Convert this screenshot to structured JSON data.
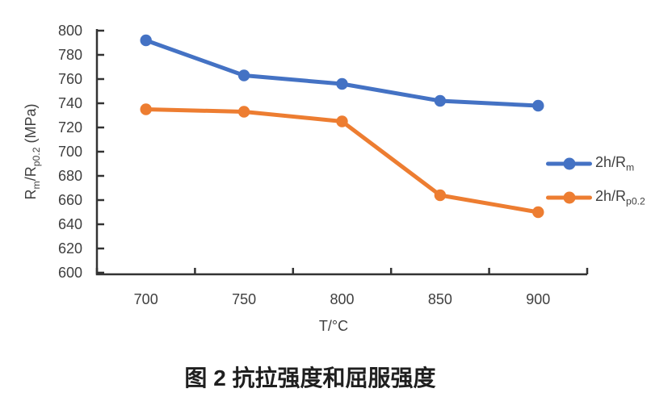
{
  "figure": {
    "caption": "图 2 抗拉强度和屈服强度"
  },
  "chart_data": {
    "type": "line",
    "title": "",
    "categories": [
      700,
      750,
      800,
      850,
      900
    ],
    "x_axis": {
      "title": "T/°C",
      "tick_labels": [
        "700",
        "750",
        "800",
        "850",
        "900"
      ]
    },
    "y_axis": {
      "title": "Rm/Rp0.2 (MPa)",
      "title_parts": [
        {
          "t": "R"
        },
        {
          "t": "m",
          "sub": true
        },
        {
          "t": "/R"
        },
        {
          "t": "p0.2",
          "sub": true
        },
        {
          "t": " (MPa)"
        }
      ],
      "min": 600,
      "max": 800,
      "step": 20,
      "ticks": [
        800,
        780,
        760,
        740,
        720,
        700,
        680,
        660,
        640,
        620,
        600
      ]
    },
    "series": [
      {
        "name": "2h/Rm",
        "label_main": "2h/R",
        "label_sub": "m",
        "color": "#4472C4",
        "values": [
          792,
          763,
          756,
          742,
          738
        ]
      },
      {
        "name": "2h/Rp0.2",
        "label_main": "2h/R",
        "label_sub": "p0.2",
        "color": "#ED7D31",
        "values": [
          735,
          733,
          725,
          664,
          650
        ]
      }
    ],
    "legend_position": "right",
    "grid": false,
    "axis_color": "#333333",
    "tick_label_color": "#3f3f3f"
  }
}
